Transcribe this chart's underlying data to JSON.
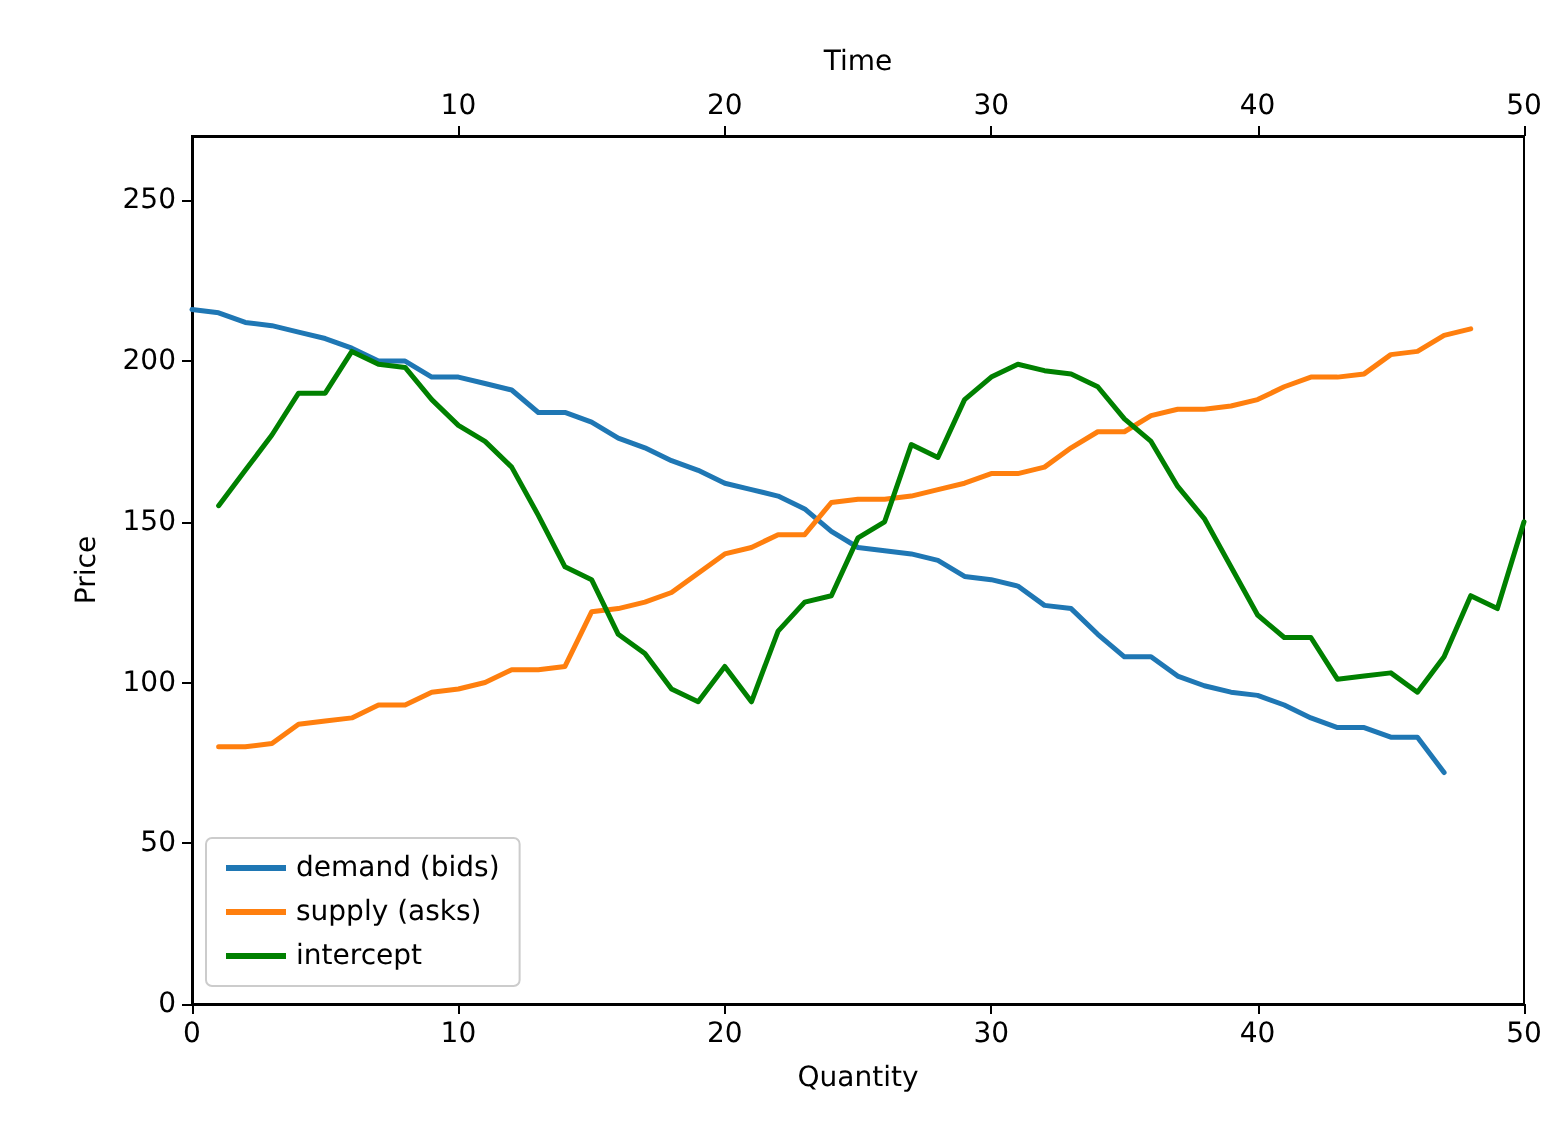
{
  "chart_data": {
    "type": "line",
    "xlabel": "Quantity",
    "ylabel": "Price",
    "x2label": "Time",
    "xlim": [
      0,
      50
    ],
    "xticks": [
      0,
      10,
      20,
      30,
      40,
      50
    ],
    "x2lim": [
      0,
      50
    ],
    "x2ticks": [
      10,
      20,
      30,
      40,
      50
    ],
    "ylim": [
      0,
      270
    ],
    "yticks": [
      0,
      50,
      100,
      150,
      200,
      250
    ],
    "grid": false,
    "legend": "bottom left",
    "marker": "none",
    "line_style": "solid",
    "series": [
      {
        "name": "demand (bids)",
        "color": "#1f77b4",
        "x": [
          0,
          1,
          2,
          3,
          4,
          5,
          6,
          7,
          8,
          9,
          10,
          11,
          12,
          13,
          14,
          15,
          16,
          17,
          18,
          19,
          20,
          21,
          22,
          23,
          24,
          25,
          26,
          27,
          28,
          29,
          30,
          31,
          32,
          33,
          34,
          35,
          36,
          37,
          38,
          39,
          40,
          41,
          42,
          43,
          44,
          45,
          46,
          47
        ],
        "values": [
          216,
          215,
          212,
          211,
          209,
          207,
          204,
          200,
          200,
          195,
          195,
          193,
          191,
          184,
          184,
          181,
          176,
          173,
          169,
          166,
          162,
          160,
          158,
          154,
          147,
          142,
          141,
          140,
          138,
          133,
          132,
          130,
          124,
          123,
          115,
          108,
          108,
          102,
          99,
          97,
          96,
          93,
          89,
          86,
          86,
          83,
          83,
          72
        ]
      },
      {
        "name": "supply (asks)",
        "color": "#ff7f0e",
        "x": [
          1,
          2,
          3,
          4,
          5,
          6,
          7,
          8,
          9,
          10,
          11,
          12,
          13,
          14,
          15,
          16,
          17,
          18,
          19,
          20,
          21,
          22,
          23,
          24,
          25,
          26,
          27,
          28,
          29,
          30,
          31,
          32,
          33,
          34,
          35,
          36,
          37,
          38,
          39,
          40,
          41,
          42,
          43,
          44,
          45,
          46,
          47,
          48
        ],
        "values": [
          80,
          80,
          81,
          87,
          88,
          89,
          93,
          93,
          97,
          98,
          100,
          104,
          104,
          105,
          122,
          123,
          125,
          128,
          134,
          140,
          142,
          146,
          146,
          156,
          157,
          157,
          158,
          160,
          162,
          165,
          165,
          167,
          173,
          178,
          178,
          183,
          185,
          185,
          186,
          188,
          192,
          195,
          195,
          196,
          202,
          203,
          208,
          210
        ]
      },
      {
        "name": "intercept",
        "color": "#008000",
        "x": [
          1,
          2,
          3,
          4,
          5,
          6,
          7,
          8,
          9,
          10,
          11,
          12,
          13,
          14,
          15,
          16,
          17,
          18,
          19,
          20,
          21,
          22,
          23,
          24,
          25,
          26,
          27,
          28,
          29,
          30,
          31,
          32,
          33,
          34,
          35,
          36,
          37,
          38,
          39,
          40,
          41,
          42,
          43,
          44,
          45,
          46,
          47,
          48,
          49,
          50
        ],
        "values": [
          155,
          166,
          177,
          190,
          190,
          203,
          199,
          198,
          188,
          180,
          175,
          167,
          152,
          136,
          132,
          115,
          109,
          98,
          94,
          105,
          94,
          116,
          125,
          127,
          145,
          150,
          174,
          170,
          188,
          195,
          199,
          197,
          196,
          192,
          182,
          175,
          161,
          151,
          136,
          121,
          114,
          114,
          101,
          102,
          103,
          97,
          108,
          127,
          123,
          150
        ]
      }
    ]
  }
}
